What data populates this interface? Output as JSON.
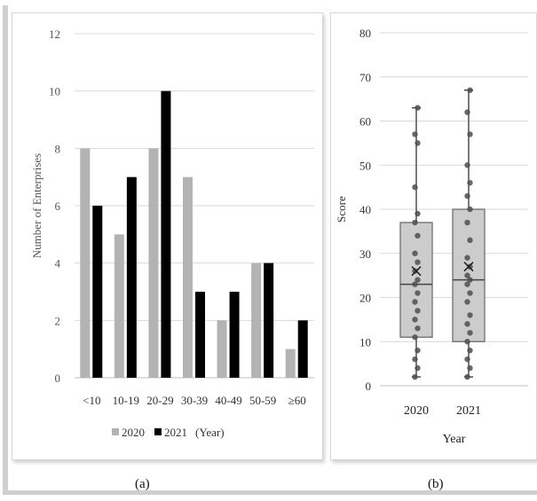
{
  "captions": {
    "a": "(a)",
    "b": "(b)"
  },
  "chart_data": [
    {
      "type": "bar",
      "ylabel": "Number of Enterprises",
      "categories": [
        "<10",
        "10-19",
        "20-29",
        "30-39",
        "40-49",
        "50-59",
        "≥60"
      ],
      "series": [
        {
          "name": "2020",
          "values": [
            8,
            5,
            8,
            7,
            2,
            4,
            1
          ]
        },
        {
          "name": "2021",
          "values": [
            6,
            7,
            10,
            3,
            3,
            4,
            2
          ]
        }
      ],
      "legend_suffix": "(Year)",
      "ylim": [
        0,
        12
      ],
      "yticks": [
        0,
        2,
        4,
        6,
        8,
        10,
        12
      ],
      "grid": true,
      "legend": "bottom",
      "colors": {
        "2020": "#b3b3b3",
        "2021": "#000000"
      }
    },
    {
      "type": "box",
      "xlabel": "Year",
      "ylabel": "Score",
      "categories": [
        "2020",
        "2021"
      ],
      "ylim": [
        0,
        80
      ],
      "yticks": [
        0,
        10,
        20,
        30,
        40,
        50,
        60,
        70,
        80
      ],
      "grid": true,
      "boxes": [
        {
          "category": "2020",
          "min": 2,
          "q1": 11,
          "median": 23,
          "q3": 37,
          "max": 63,
          "mean": 26,
          "points": [
            2,
            4,
            6,
            8,
            11,
            13,
            15,
            17,
            19,
            21,
            23,
            24,
            26,
            28,
            30,
            34,
            37,
            39,
            45,
            55,
            57,
            63
          ]
        },
        {
          "category": "2021",
          "min": 2,
          "q1": 10,
          "median": 24,
          "q3": 40,
          "max": 67,
          "mean": 27,
          "points": [
            2,
            4,
            6,
            8,
            10,
            12,
            14,
            16,
            19,
            21,
            23,
            24,
            25,
            27,
            29,
            33,
            37,
            40,
            43,
            46,
            50,
            57,
            62,
            67
          ]
        }
      ],
      "colors": {
        "box_fill": "#cccccc",
        "box_edge": "#6e6e6e",
        "point": "#4d4d4d"
      }
    }
  ]
}
